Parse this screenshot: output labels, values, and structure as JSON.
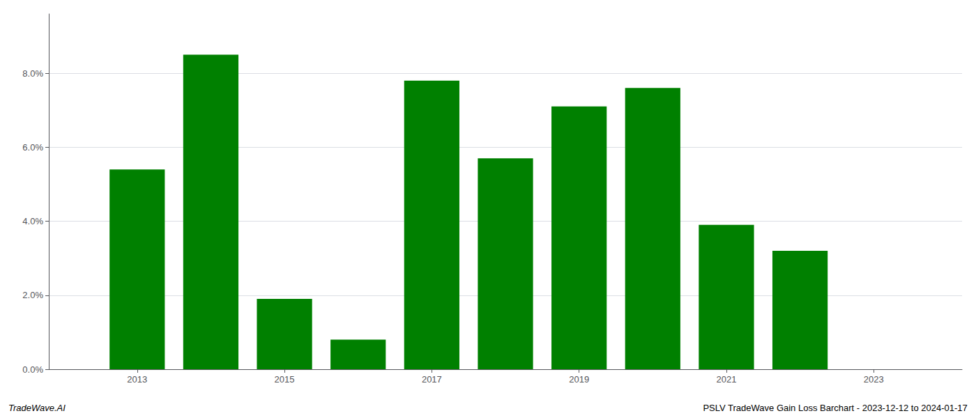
{
  "chart_data": {
    "type": "bar",
    "x": [
      2013,
      2014,
      2015,
      2016,
      2017,
      2018,
      2019,
      2020,
      2021,
      2022
    ],
    "values": [
      0.054,
      0.085,
      0.019,
      0.008,
      0.078,
      0.057,
      0.071,
      0.076,
      0.039,
      0.032
    ],
    "color": "#008000",
    "xlim": [
      2011.8,
      2024.2
    ],
    "xticks": [
      2013,
      2015,
      2017,
      2019,
      2021,
      2023
    ],
    "ylim": [
      0,
      0.096
    ],
    "yticks": [
      {
        "value": 0.0,
        "label": "0.0%"
      },
      {
        "value": 0.02,
        "label": "2.0%"
      },
      {
        "value": 0.04,
        "label": "4.0%"
      },
      {
        "value": 0.06,
        "label": "6.0%"
      },
      {
        "value": 0.08,
        "label": "8.0%"
      }
    ],
    "grid": true,
    "annotations": [
      "TradeWave.AI",
      "PSLV TradeWave Gain Loss Barchart - 2023-12-12 to 2024-01-17"
    ]
  }
}
